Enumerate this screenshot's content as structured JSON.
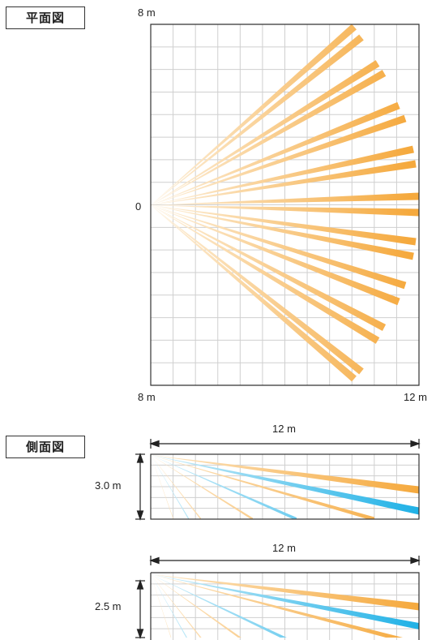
{
  "plan_view": {
    "title": "平面図",
    "top_label": "8 m",
    "origin_label": "0",
    "bottom_left_label": "8 m",
    "bottom_right_label": "12 m"
  },
  "side_view": {
    "title": "側面図",
    "panel_a": {
      "width_label": "12 m",
      "height_label": "3.0 m"
    },
    "panel_b": {
      "width_label": "12 m",
      "height_label": "2.5 m"
    }
  },
  "colors": {
    "orange": "#f5a93d",
    "orange_light": "#fde3bd",
    "blue": "#2ab7e8",
    "blue_light": "#bfe9f8",
    "grid": "#cfcfcf",
    "frame": "#333333"
  }
}
